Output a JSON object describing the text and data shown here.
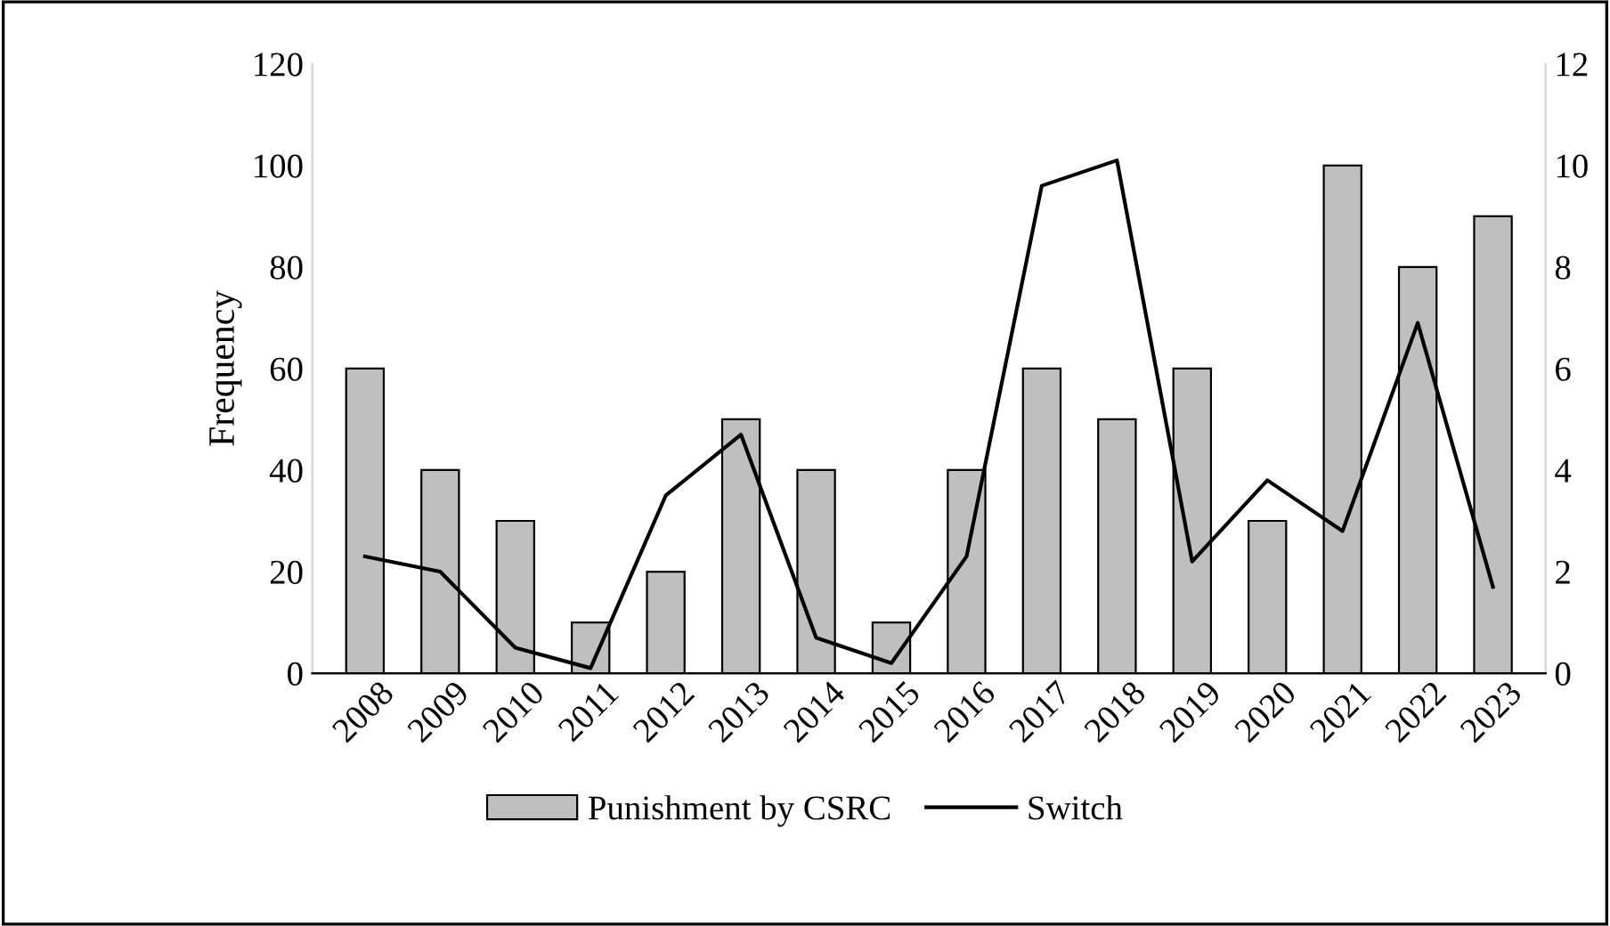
{
  "chart_data": {
    "type": "bar",
    "ylabel": "Frequency",
    "categories": [
      "2008",
      "2009",
      "2010",
      "2011",
      "2012",
      "2013",
      "2014",
      "2015",
      "2016",
      "2017",
      "2018",
      "2019",
      "2020",
      "2021",
      "2022",
      "2023"
    ],
    "series": [
      {
        "name": "Punishment by CSRC",
        "color": "#bfbfbf",
        "values": [
          60,
          40,
          30,
          10,
          20,
          50,
          40,
          10,
          40,
          60,
          50,
          60,
          30,
          100,
          80,
          90
        ]
      },
      {
        "name": "Switch",
        "type": "line",
        "axis": "y2",
        "color": "#000000",
        "values": [
          2.3,
          2.0,
          0.5,
          0.1,
          3.5,
          4.7,
          0.7,
          0.2,
          2.3,
          9.6,
          10.1,
          2.2,
          3.8,
          2.8,
          6.9,
          1.7
        ]
      }
    ],
    "ylim": [
      0,
      120
    ],
    "yticks": [
      0,
      20,
      40,
      60,
      80,
      100,
      120
    ],
    "y2lim": [
      0,
      12
    ],
    "y2ticks": [
      0,
      2,
      4,
      6,
      8,
      10,
      12
    ],
    "grid": false,
    "legend": "bottom",
    "marker": "none",
    "line_style": "solid"
  }
}
